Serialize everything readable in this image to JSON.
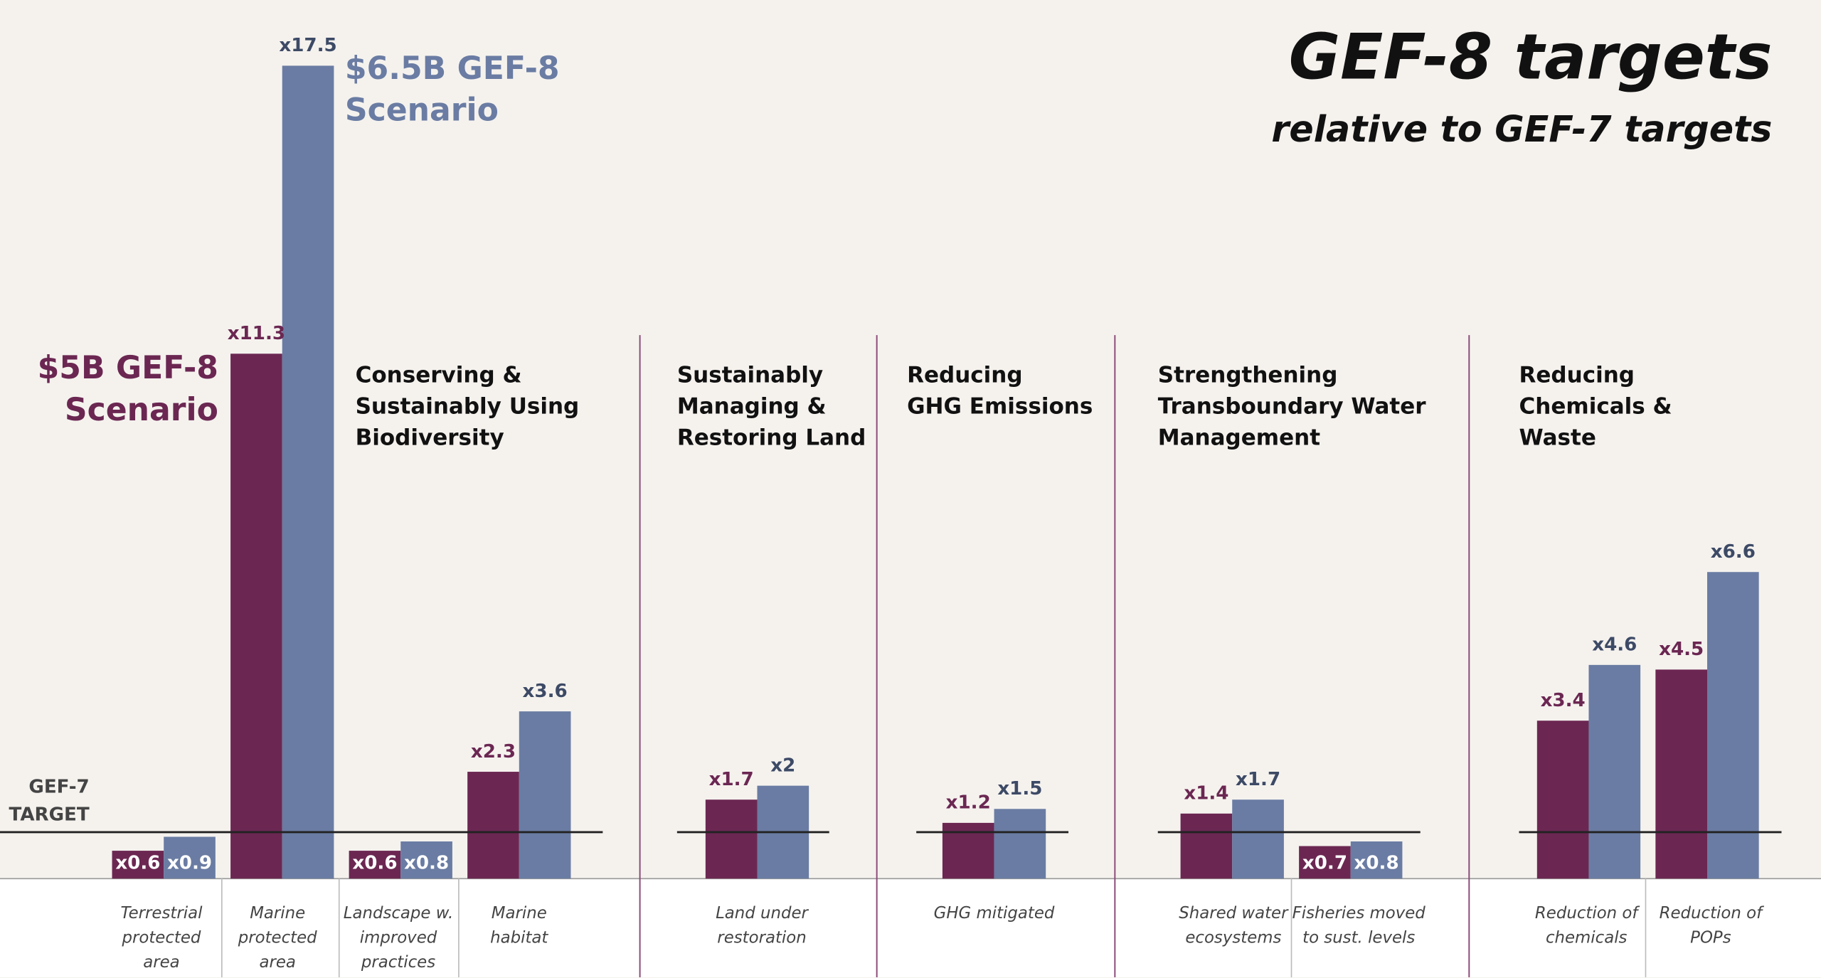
{
  "chart_data": {
    "type": "bar",
    "title": "GEF-8 targets",
    "subtitle": "relative to GEF-7 targets",
    "categories": [
      "Terrestrial protected area",
      "Marine protected area",
      "Landscape w. improved practices",
      "Marine habitat",
      "Land under restoration",
      "GHG mitigated",
      "Shared water ecosystems",
      "Fisheries moved to sust. levels",
      "Reduction of chemicals",
      "Reduction of POPs"
    ],
    "groups": [
      {
        "name": "Conserving & Sustainably Using Biodiversity"
      },
      {
        "name": "Sustainably Managing & Restoring Land"
      },
      {
        "name": "Reducing GHG Emissions"
      },
      {
        "name": "Strengthening Transboundary Water Management"
      },
      {
        "name": "Reducing Chemicals & Waste"
      }
    ],
    "series": [
      {
        "name": "$5B GEF-8 Scenario",
        "color": "#6b2752",
        "values": [
          0.6,
          11.3,
          0.6,
          2.3,
          1.7,
          1.2,
          1.4,
          0.7,
          3.4,
          4.5
        ],
        "value_labels": [
          "x0.6",
          "x11.3",
          "x0.6",
          "x2.3",
          "x1.7",
          "x1.2",
          "x1.4",
          "x0.7",
          "x3.4",
          "x4.5"
        ]
      },
      {
        "name": "$6.5B GEF-8 Scenario",
        "color": "#6a7ca3",
        "values": [
          0.9,
          17.5,
          0.8,
          3.6,
          2,
          1.5,
          1.7,
          0.8,
          4.6,
          6.6
        ],
        "value_labels": [
          "x0.9",
          "x17.5",
          "x0.8",
          "x3.6",
          "x2",
          "x1.5",
          "x1.7",
          "x0.8",
          "x4.6",
          "x6.6"
        ]
      }
    ],
    "target": {
      "value": 1,
      "label": "GEF-7 TARGET"
    },
    "ylim": [
      0,
      18.9
    ]
  }
}
